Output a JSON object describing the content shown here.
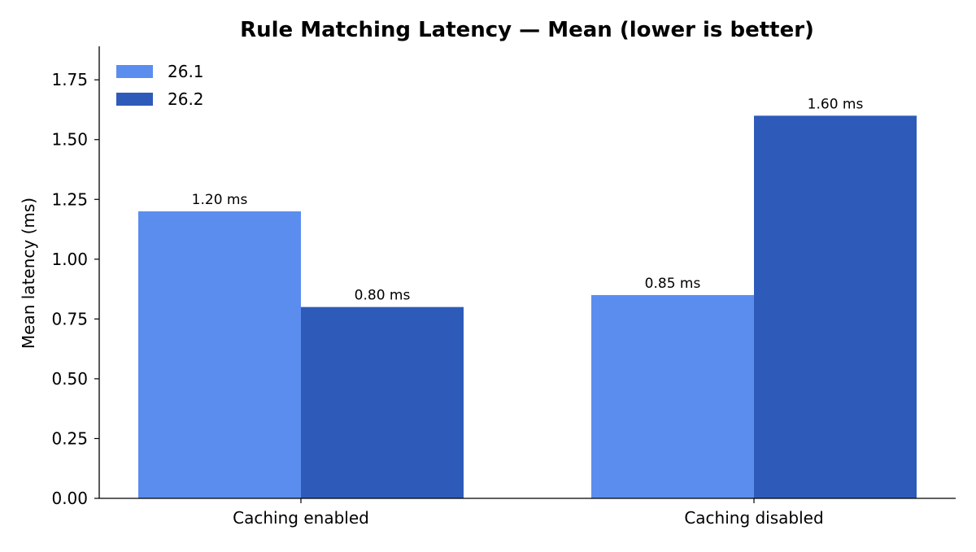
{
  "chart_data": {
    "type": "bar",
    "title": "Rule Matching Latency — Mean (lower is better)",
    "xlabel": "",
    "ylabel": "Mean latency (ms)",
    "categories": [
      "Caching enabled",
      "Caching disabled"
    ],
    "series": [
      {
        "name": "26.1",
        "color": "#5b8def",
        "values": [
          1.2,
          0.85
        ],
        "value_labels": [
          "1.20 ms",
          "0.85 ms"
        ]
      },
      {
        "name": "26.2",
        "color": "#2e5bba",
        "values": [
          0.8,
          1.6
        ],
        "value_labels": [
          "0.80 ms",
          "1.60 ms"
        ]
      }
    ],
    "ylim": [
      0,
      1.89
    ],
    "yticks": [
      0.0,
      0.25,
      0.5,
      0.75,
      1.0,
      1.25,
      1.5,
      1.75
    ],
    "ytick_labels": [
      "0.00",
      "0.25",
      "0.50",
      "0.75",
      "1.00",
      "1.25",
      "1.50",
      "1.75"
    ],
    "grid": false,
    "legend_position": "top-left"
  }
}
